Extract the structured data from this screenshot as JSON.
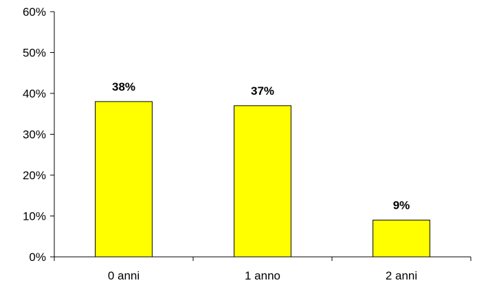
{
  "chart_data": {
    "type": "bar",
    "categories": [
      "0 anni",
      "1 anno",
      "2 anni"
    ],
    "values": [
      38,
      37,
      9
    ],
    "data_labels": [
      "38%",
      "37%",
      "9%"
    ],
    "ylim": [
      0,
      60
    ],
    "y_ticks": [
      "0%",
      "10%",
      "20%",
      "30%",
      "40%",
      "50%",
      "60%"
    ],
    "grid": false,
    "legend": "none",
    "bar_color": "#ffff00",
    "bar_edge_color": "#000000"
  }
}
